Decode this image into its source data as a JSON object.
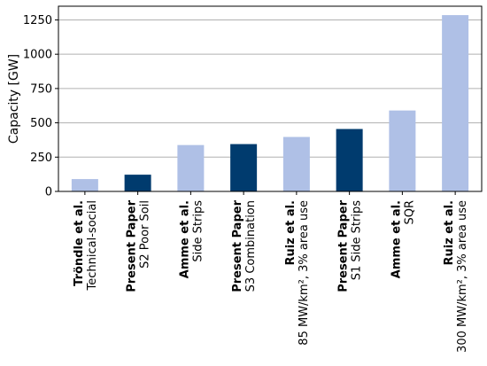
{
  "chart_data": {
    "type": "bar",
    "ylabel": "Capacity [GW]",
    "ylim": [
      0,
      1350
    ],
    "yticks": [
      0,
      250,
      500,
      750,
      1000,
      1250
    ],
    "grid": "horizontal",
    "colors": {
      "literature": "#afc0e6",
      "present_paper": "#003b6e"
    },
    "categories": [
      {
        "author": "Tröndle et al.",
        "scenario": "Technical-social",
        "value": 90,
        "group": "literature"
      },
      {
        "author": "Present Paper",
        "scenario": "S2 Poor Soil",
        "value": 122,
        "group": "present_paper"
      },
      {
        "author": "Amme et al.",
        "scenario": "Side Strips",
        "value": 338,
        "group": "literature"
      },
      {
        "author": "Present Paper",
        "scenario": "S3 Combination",
        "value": 345,
        "group": "present_paper"
      },
      {
        "author": "Ruiz et al.",
        "scenario": "85 MW/km², 3% area use",
        "value": 397,
        "group": "literature"
      },
      {
        "author": "Present Paper",
        "scenario": "S1 Side Strips",
        "value": 455,
        "group": "present_paper"
      },
      {
        "author": "Amme et al.",
        "scenario": "SQR",
        "value": 590,
        "group": "literature"
      },
      {
        "author": "Ruiz et al.",
        "scenario": "300 MW/km², 3% area use",
        "value": 1285,
        "group": "literature"
      }
    ]
  }
}
